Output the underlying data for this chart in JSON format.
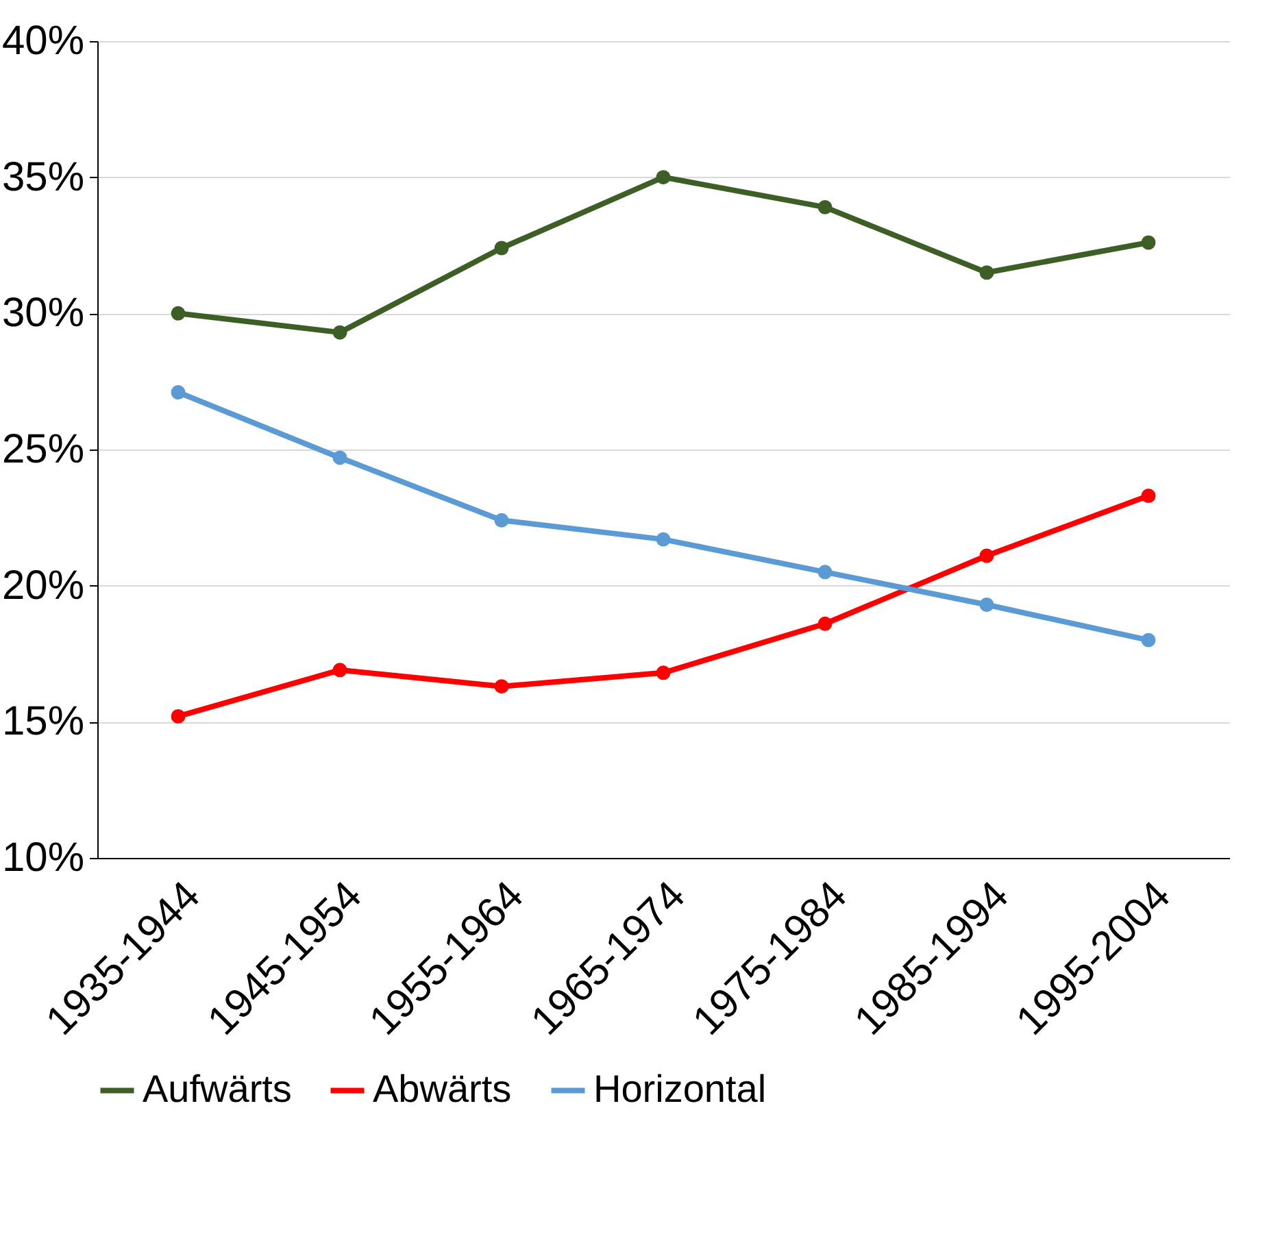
{
  "chart_data": {
    "type": "line",
    "categories": [
      "1935-1944",
      "1945-1954",
      "1955-1964",
      "1965-1974",
      "1975-1984",
      "1985-1994",
      "1995-2004"
    ],
    "series": [
      {
        "name": "Aufwärts",
        "color": "#3d5f26",
        "values": [
          30.0,
          29.3,
          32.4,
          35.0,
          33.9,
          31.5,
          32.6
        ]
      },
      {
        "name": "Abwärts",
        "color": "#ff0000",
        "values": [
          15.2,
          16.9,
          16.3,
          16.8,
          18.6,
          21.1,
          23.3
        ]
      },
      {
        "name": "Horizontal",
        "color": "#5b9bd5",
        "values": [
          27.1,
          24.7,
          22.4,
          21.7,
          20.5,
          19.3,
          18.0
        ]
      }
    ],
    "ylim": [
      10,
      40
    ],
    "yticks": [
      {
        "value": 10,
        "label": "10%"
      },
      {
        "value": 15,
        "label": "15%"
      },
      {
        "value": 20,
        "label": "20%"
      },
      {
        "value": 25,
        "label": "25%"
      },
      {
        "value": 30,
        "label": "30%"
      },
      {
        "value": 35,
        "label": "35%"
      },
      {
        "value": 40,
        "label": "40%"
      }
    ],
    "grid": "y",
    "legend": "bottom",
    "marker": "circle",
    "line_style": "solid"
  }
}
